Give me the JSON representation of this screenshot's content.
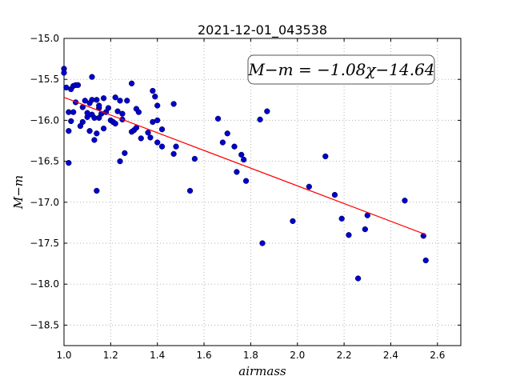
{
  "chart_data": {
    "type": "scatter",
    "title": "2021-12-01_043538",
    "xlabel": "airmass",
    "ylabel": "M−m",
    "xlim": [
      1.0,
      2.7
    ],
    "ylim": [
      -15.0,
      -18.75
    ],
    "y_inverted": true,
    "grid": true,
    "x_ticks": [
      "1.0",
      "1.2",
      "1.4",
      "1.6",
      "1.8",
      "2.0",
      "2.2",
      "2.4",
      "2.6"
    ],
    "y_ticks": [
      "−15.0",
      "−15.5",
      "−16.0",
      "−16.5",
      "−17.0",
      "−17.5",
      "−18.0",
      "−18.5"
    ],
    "annotation": "M−m = −1.08χ−14.64",
    "fit": {
      "slope": -1.08,
      "intercept": -14.64,
      "x_range": [
        1.0,
        2.55
      ],
      "color": "#ff0000"
    },
    "series": [
      {
        "color": "#0000cc",
        "points": [
          [
            1.0,
            -15.37
          ],
          [
            1.0,
            -15.42
          ],
          [
            1.01,
            -15.6
          ],
          [
            1.02,
            -16.52
          ],
          [
            1.02,
            -16.13
          ],
          [
            1.02,
            -15.9
          ],
          [
            1.03,
            -16.01
          ],
          [
            1.03,
            -15.62
          ],
          [
            1.04,
            -15.58
          ],
          [
            1.04,
            -15.9
          ],
          [
            1.05,
            -15.57
          ],
          [
            1.05,
            -15.78
          ],
          [
            1.06,
            -15.57
          ],
          [
            1.07,
            -16.07
          ],
          [
            1.08,
            -16.02
          ],
          [
            1.08,
            -15.84
          ],
          [
            1.09,
            -15.76
          ],
          [
            1.1,
            -15.96
          ],
          [
            1.1,
            -15.91
          ],
          [
            1.11,
            -15.79
          ],
          [
            1.11,
            -16.13
          ],
          [
            1.12,
            -15.47
          ],
          [
            1.12,
            -15.75
          ],
          [
            1.12,
            -15.93
          ],
          [
            1.13,
            -16.24
          ],
          [
            1.13,
            -15.97
          ],
          [
            1.14,
            -16.86
          ],
          [
            1.14,
            -16.16
          ],
          [
            1.14,
            -15.75
          ],
          [
            1.15,
            -15.97
          ],
          [
            1.15,
            -15.85
          ],
          [
            1.15,
            -15.82
          ],
          [
            1.16,
            -15.92
          ],
          [
            1.17,
            -15.73
          ],
          [
            1.17,
            -16.1
          ],
          [
            1.18,
            -15.9
          ],
          [
            1.19,
            -15.85
          ],
          [
            1.2,
            -16.0
          ],
          [
            1.21,
            -16.02
          ],
          [
            1.22,
            -16.04
          ],
          [
            1.22,
            -15.72
          ],
          [
            1.23,
            -15.89
          ],
          [
            1.24,
            -15.76
          ],
          [
            1.24,
            -16.5
          ],
          [
            1.25,
            -15.92
          ],
          [
            1.25,
            -15.99
          ],
          [
            1.26,
            -16.4
          ],
          [
            1.27,
            -15.76
          ],
          [
            1.29,
            -16.14
          ],
          [
            1.29,
            -15.55
          ],
          [
            1.3,
            -16.12
          ],
          [
            1.31,
            -15.86
          ],
          [
            1.31,
            -16.09
          ],
          [
            1.32,
            -15.9
          ],
          [
            1.33,
            -16.22
          ],
          [
            1.36,
            -16.15
          ],
          [
            1.37,
            -16.21
          ],
          [
            1.38,
            -16.02
          ],
          [
            1.38,
            -15.64
          ],
          [
            1.39,
            -15.71
          ],
          [
            1.4,
            -15.82
          ],
          [
            1.4,
            -16.27
          ],
          [
            1.4,
            -16.0
          ],
          [
            1.42,
            -16.32
          ],
          [
            1.42,
            -16.11
          ],
          [
            1.47,
            -16.41
          ],
          [
            1.47,
            -15.8
          ],
          [
            1.48,
            -16.32
          ],
          [
            1.54,
            -16.86
          ],
          [
            1.56,
            -16.47
          ],
          [
            1.66,
            -15.98
          ],
          [
            1.68,
            -16.27
          ],
          [
            1.7,
            -16.16
          ],
          [
            1.73,
            -16.32
          ],
          [
            1.74,
            -16.63
          ],
          [
            1.76,
            -16.42
          ],
          [
            1.77,
            -16.48
          ],
          [
            1.78,
            -16.74
          ],
          [
            1.84,
            -15.99
          ],
          [
            1.85,
            -17.5
          ],
          [
            1.87,
            -15.89
          ],
          [
            1.98,
            -17.23
          ],
          [
            2.05,
            -16.81
          ],
          [
            2.12,
            -16.44
          ],
          [
            2.16,
            -16.91
          ],
          [
            2.19,
            -17.2
          ],
          [
            2.22,
            -17.4
          ],
          [
            2.26,
            -17.93
          ],
          [
            2.29,
            -17.33
          ],
          [
            2.3,
            -17.16
          ],
          [
            2.46,
            -16.98
          ],
          [
            2.54,
            -17.41
          ],
          [
            2.55,
            -17.71
          ]
        ]
      }
    ]
  }
}
